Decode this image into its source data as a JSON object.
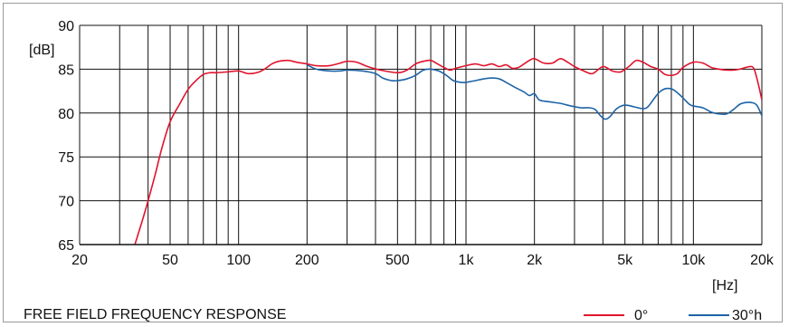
{
  "chart_data": {
    "type": "line",
    "title": "FREE FIELD FREQUENCY RESPONSE",
    "xlabel": "[Hz]",
    "ylabel": "[dB]",
    "x_scale": "log",
    "xlim": [
      20,
      20000
    ],
    "ylim": [
      65,
      90
    ],
    "x_ticks": [
      {
        "value": 20,
        "label": "20"
      },
      {
        "value": 50,
        "label": "50"
      },
      {
        "value": 100,
        "label": "100"
      },
      {
        "value": 200,
        "label": "200"
      },
      {
        "value": 500,
        "label": "500"
      },
      {
        "value": 1000,
        "label": "1k"
      },
      {
        "value": 2000,
        "label": "2k"
      },
      {
        "value": 5000,
        "label": "5k"
      },
      {
        "value": 10000,
        "label": "10k"
      },
      {
        "value": 20000,
        "label": "20k"
      }
    ],
    "y_ticks": [
      {
        "value": 65,
        "label": "65"
      },
      {
        "value": 70,
        "label": "70"
      },
      {
        "value": 75,
        "label": "75"
      },
      {
        "value": 80,
        "label": "80"
      },
      {
        "value": 85,
        "label": "85"
      },
      {
        "value": 90,
        "label": "90"
      }
    ],
    "grid": true,
    "legend_position": "bottom-right",
    "series": [
      {
        "name": "0°",
        "color": "#e0142d",
        "points": [
          [
            35,
            65
          ],
          [
            38,
            68
          ],
          [
            40,
            70
          ],
          [
            43,
            73
          ],
          [
            46,
            76
          ],
          [
            50,
            79
          ],
          [
            55,
            81
          ],
          [
            60,
            82.7
          ],
          [
            65,
            83.7
          ],
          [
            70,
            84.4
          ],
          [
            75,
            84.6
          ],
          [
            80,
            84.6
          ],
          [
            90,
            84.7
          ],
          [
            100,
            84.8
          ],
          [
            110,
            84.5
          ],
          [
            120,
            84.6
          ],
          [
            130,
            85.0
          ],
          [
            140,
            85.6
          ],
          [
            150,
            85.9
          ],
          [
            165,
            86.0
          ],
          [
            180,
            85.8
          ],
          [
            200,
            85.6
          ],
          [
            220,
            85.4
          ],
          [
            250,
            85.4
          ],
          [
            280,
            85.7
          ],
          [
            300,
            85.9
          ],
          [
            330,
            85.8
          ],
          [
            370,
            85.3
          ],
          [
            420,
            84.9
          ],
          [
            500,
            84.6
          ],
          [
            550,
            84.9
          ],
          [
            600,
            85.6
          ],
          [
            650,
            85.9
          ],
          [
            700,
            86.0
          ],
          [
            750,
            85.6
          ],
          [
            800,
            85.2
          ],
          [
            850,
            84.9
          ],
          [
            900,
            85.1
          ],
          [
            1000,
            85.4
          ],
          [
            1100,
            85.6
          ],
          [
            1200,
            85.4
          ],
          [
            1300,
            85.6
          ],
          [
            1400,
            85.3
          ],
          [
            1500,
            85.5
          ],
          [
            1600,
            85.1
          ],
          [
            1700,
            85.2
          ],
          [
            1800,
            85.6
          ],
          [
            1900,
            86.0
          ],
          [
            2000,
            86.2
          ],
          [
            2200,
            85.7
          ],
          [
            2400,
            85.7
          ],
          [
            2600,
            86.2
          ],
          [
            2800,
            85.8
          ],
          [
            3000,
            85.3
          ],
          [
            3300,
            84.8
          ],
          [
            3600,
            84.5
          ],
          [
            4000,
            85.3
          ],
          [
            4400,
            84.8
          ],
          [
            4800,
            84.7
          ],
          [
            5200,
            85.3
          ],
          [
            5600,
            86.0
          ],
          [
            6000,
            85.8
          ],
          [
            6500,
            85.3
          ],
          [
            7000,
            85.0
          ],
          [
            7500,
            84.4
          ],
          [
            8000,
            84.3
          ],
          [
            8500,
            84.5
          ],
          [
            9000,
            85.2
          ],
          [
            10000,
            85.8
          ],
          [
            11000,
            85.7
          ],
          [
            12000,
            85.2
          ],
          [
            13000,
            85.0
          ],
          [
            14000,
            84.9
          ],
          [
            15000,
            84.9
          ],
          [
            16000,
            85.0
          ],
          [
            17000,
            85.2
          ],
          [
            18000,
            85.3
          ],
          [
            18500,
            85.0
          ],
          [
            19000,
            84.0
          ],
          [
            19500,
            82.8
          ],
          [
            20000,
            81.5
          ]
        ]
      },
      {
        "name": "30°h",
        "color": "#1d63a6",
        "points": [
          [
            200,
            85.5
          ],
          [
            220,
            85.0
          ],
          [
            250,
            84.8
          ],
          [
            280,
            84.8
          ],
          [
            300,
            84.9
          ],
          [
            350,
            84.8
          ],
          [
            400,
            84.5
          ],
          [
            430,
            84.0
          ],
          [
            470,
            83.7
          ],
          [
            500,
            83.7
          ],
          [
            550,
            83.9
          ],
          [
            600,
            84.3
          ],
          [
            650,
            84.9
          ],
          [
            700,
            85.0
          ],
          [
            760,
            84.8
          ],
          [
            820,
            84.3
          ],
          [
            880,
            83.7
          ],
          [
            950,
            83.5
          ],
          [
            1000,
            83.5
          ],
          [
            1100,
            83.7
          ],
          [
            1200,
            83.9
          ],
          [
            1300,
            84.0
          ],
          [
            1400,
            83.9
          ],
          [
            1500,
            83.5
          ],
          [
            1650,
            82.9
          ],
          [
            1800,
            82.4
          ],
          [
            1900,
            82.0
          ],
          [
            2000,
            82.2
          ],
          [
            2100,
            81.5
          ],
          [
            2300,
            81.3
          ],
          [
            2600,
            81.1
          ],
          [
            2900,
            80.8
          ],
          [
            3200,
            80.6
          ],
          [
            3500,
            80.6
          ],
          [
            3700,
            80.4
          ],
          [
            3900,
            79.7
          ],
          [
            4100,
            79.3
          ],
          [
            4300,
            79.6
          ],
          [
            4600,
            80.5
          ],
          [
            5000,
            80.9
          ],
          [
            5500,
            80.7
          ],
          [
            6000,
            80.5
          ],
          [
            6300,
            80.7
          ],
          [
            6700,
            81.6
          ],
          [
            7100,
            82.4
          ],
          [
            7600,
            82.8
          ],
          [
            8100,
            82.7
          ],
          [
            8600,
            82.2
          ],
          [
            9100,
            81.6
          ],
          [
            9600,
            81.0
          ],
          [
            10000,
            80.8
          ],
          [
            11000,
            80.6
          ],
          [
            12000,
            80.1
          ],
          [
            13000,
            79.9
          ],
          [
            14000,
            79.9
          ],
          [
            15000,
            80.4
          ],
          [
            16000,
            81.0
          ],
          [
            17000,
            81.2
          ],
          [
            18000,
            81.2
          ],
          [
            19000,
            80.9
          ],
          [
            20000,
            79.7
          ]
        ]
      }
    ]
  }
}
